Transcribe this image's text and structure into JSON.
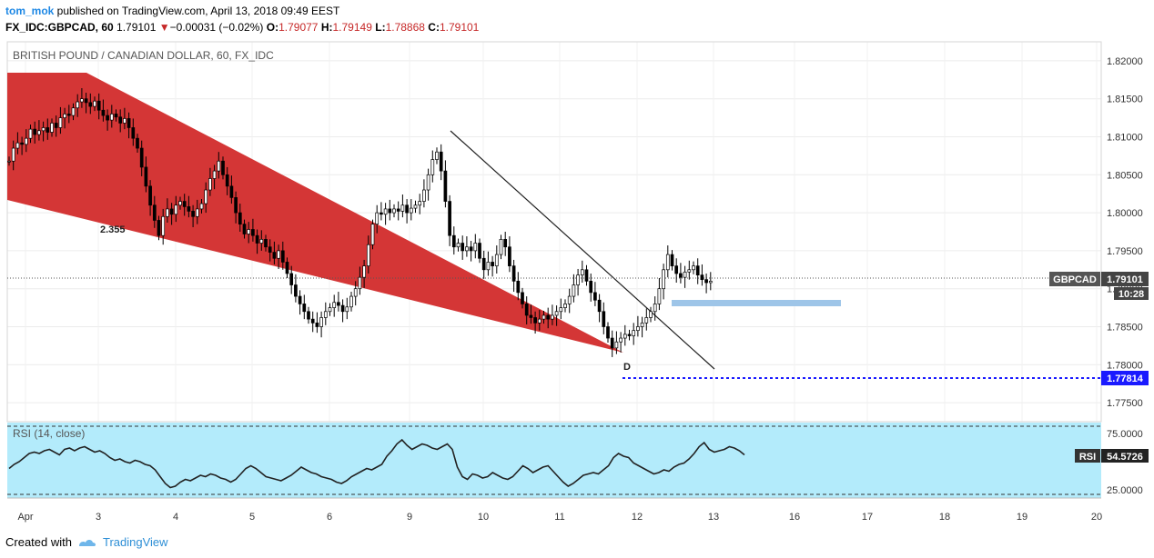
{
  "header": {
    "user": "tom_mok",
    "published_text": " published on TradingView.com, April 13, 2018 09:49 EEST",
    "symbol": "FX_IDC:GBPCAD, 60",
    "last": "1.79101",
    "change": "−0.00031 (−0.02%)",
    "o_label": "O:",
    "o": "1.79077",
    "h_label": "H:",
    "h": "1.79149",
    "l_label": "L:",
    "l": "1.78868",
    "c_label": "C:",
    "c": "1.79101"
  },
  "chart_data": {
    "type": "candlestick",
    "title": "BRITISH POUND / CANADIAN DOLLAR, 60, FX_IDC",
    "price_axis_ticks": [
      "1.82000",
      "1.81500",
      "1.81000",
      "1.80500",
      "1.80000",
      "1.79500",
      "1.79000",
      "1.78500",
      "1.78000",
      "1.77500"
    ],
    "ylim": [
      1.7725,
      1.8225
    ],
    "x_ticks": [
      "Apr",
      "3",
      "4",
      "5",
      "6",
      "9",
      "10",
      "11",
      "12",
      "13",
      "16",
      "17",
      "18",
      "19",
      "20"
    ],
    "close_series": [
      {
        "day": "Apr",
        "values": [
          1.8068,
          1.8085,
          1.8092,
          1.809,
          1.8098,
          1.811,
          1.8103,
          1.8108,
          1.8112,
          1.8106,
          1.8118,
          1.8112,
          1.8125,
          1.813,
          1.8128,
          1.8138,
          1.8146,
          1.815
        ]
      },
      {
        "day": "3",
        "values": [
          1.8145,
          1.814,
          1.8147,
          1.8135,
          1.8128,
          1.8122,
          1.813,
          1.8126,
          1.8118,
          1.8124,
          1.8112,
          1.8098,
          1.8085,
          1.806,
          1.8035,
          1.801,
          1.799,
          1.797
        ]
      },
      {
        "day": "4",
        "values": [
          1.7995,
          1.8005,
          1.7998,
          1.801,
          1.8015,
          1.8008,
          1.8002,
          1.7995,
          1.8005,
          1.8012,
          1.803,
          1.8045,
          1.8055,
          1.8068,
          1.805,
          1.8035,
          1.802,
          1.8
        ]
      },
      {
        "day": "5",
        "values": [
          1.7985,
          1.7972,
          1.7978,
          1.797,
          1.796,
          1.7965,
          1.7955,
          1.7948,
          1.794,
          1.795,
          1.7935,
          1.792,
          1.7905,
          1.789,
          1.788,
          1.787,
          1.786,
          1.7855
        ]
      },
      {
        "day": "6",
        "values": [
          1.785,
          1.7862,
          1.787,
          1.7875,
          1.7882,
          1.7878,
          1.787,
          1.7876,
          1.789,
          1.79,
          1.7915,
          1.793,
          1.7958,
          1.7985,
          1.8,
          1.7998,
          1.8005,
          1.8
        ]
      },
      {
        "day": "9",
        "values": [
          1.8005,
          1.8002,
          1.801,
          1.8,
          1.8006,
          1.801,
          1.8015,
          1.803,
          1.805,
          1.807,
          1.808,
          1.8055,
          1.8015,
          1.797,
          1.7955,
          1.796,
          1.795,
          1.7955
        ]
      },
      {
        "day": "10",
        "values": [
          1.795,
          1.796,
          1.794,
          1.7925,
          1.7935,
          1.793,
          1.7945,
          1.7965,
          1.7955,
          1.793,
          1.791,
          1.7895,
          1.788,
          1.7865,
          1.7862,
          1.7855,
          1.786,
          1.7865
        ]
      },
      {
        "day": "11",
        "values": [
          1.786,
          1.7865,
          1.787,
          1.7875,
          1.788,
          1.789,
          1.7905,
          1.7918,
          1.7925,
          1.791,
          1.7895,
          1.7885,
          1.787,
          1.785,
          1.7835,
          1.7822,
          1.783,
          1.7835
        ]
      },
      {
        "day": "12",
        "values": [
          1.784,
          1.7838,
          1.7845,
          1.785,
          1.7855,
          1.7862,
          1.787,
          1.788,
          1.79,
          1.7925,
          1.7945,
          1.793,
          1.792,
          1.7915,
          1.7922,
          1.7925,
          1.793,
          1.7918
        ]
      },
      {
        "day": "13",
        "values": [
          1.7912,
          1.7908,
          1.791
        ]
      }
    ],
    "rsi_close_series": [
      44,
      47,
      49,
      52,
      55,
      56,
      55,
      57,
      58,
      56,
      54,
      58,
      59,
      57,
      59,
      60,
      58,
      56,
      57,
      55,
      52,
      50,
      51,
      49,
      48,
      50,
      49,
      47,
      46,
      43,
      38,
      33,
      30,
      31,
      34,
      36,
      35,
      37,
      39,
      38,
      40,
      39,
      37,
      36,
      34,
      36,
      40,
      44,
      46,
      44,
      41,
      38,
      37,
      36,
      35,
      37,
      39,
      42,
      45,
      43,
      41,
      40,
      38,
      37,
      36,
      34,
      33,
      35,
      38,
      40,
      42,
      44,
      43,
      45,
      47,
      53,
      57,
      62,
      65,
      61,
      58,
      60,
      62,
      61,
      59,
      58,
      60,
      62,
      58,
      45,
      38,
      36,
      40,
      39,
      37,
      38,
      41,
      39,
      37,
      36,
      38,
      42,
      46,
      44,
      41,
      43,
      45,
      46,
      42,
      38,
      34,
      31,
      33,
      36,
      39,
      40,
      41,
      40,
      43,
      46,
      52,
      55,
      53,
      52,
      48,
      46,
      44,
      42,
      40,
      41,
      43,
      42,
      45,
      47,
      48,
      51,
      55,
      60,
      63,
      58,
      56,
      57,
      58,
      60,
      59,
      57,
      54
    ]
  },
  "rsi": {
    "label": "RSI (14, close)",
    "ticks": [
      "75.0000",
      "25.0000"
    ],
    "value_label": "RSI",
    "value": "54.5726",
    "levels": [
      70,
      30
    ]
  },
  "annotations": {
    "fib_label": "2.355",
    "point_label": "D",
    "support_value": "1.77814"
  },
  "price_tag": {
    "symbol": "GBPCAD",
    "value": "1.79101",
    "time": "10:28"
  },
  "colors": {
    "wedge": "#d32f2f",
    "rsi_bg": "#b3ebfb",
    "support_line": "#1a1aff",
    "zone": "#9ec5e8",
    "candle": "#000000"
  },
  "footer": {
    "created_with": "Created with",
    "brand": "TradingView"
  }
}
